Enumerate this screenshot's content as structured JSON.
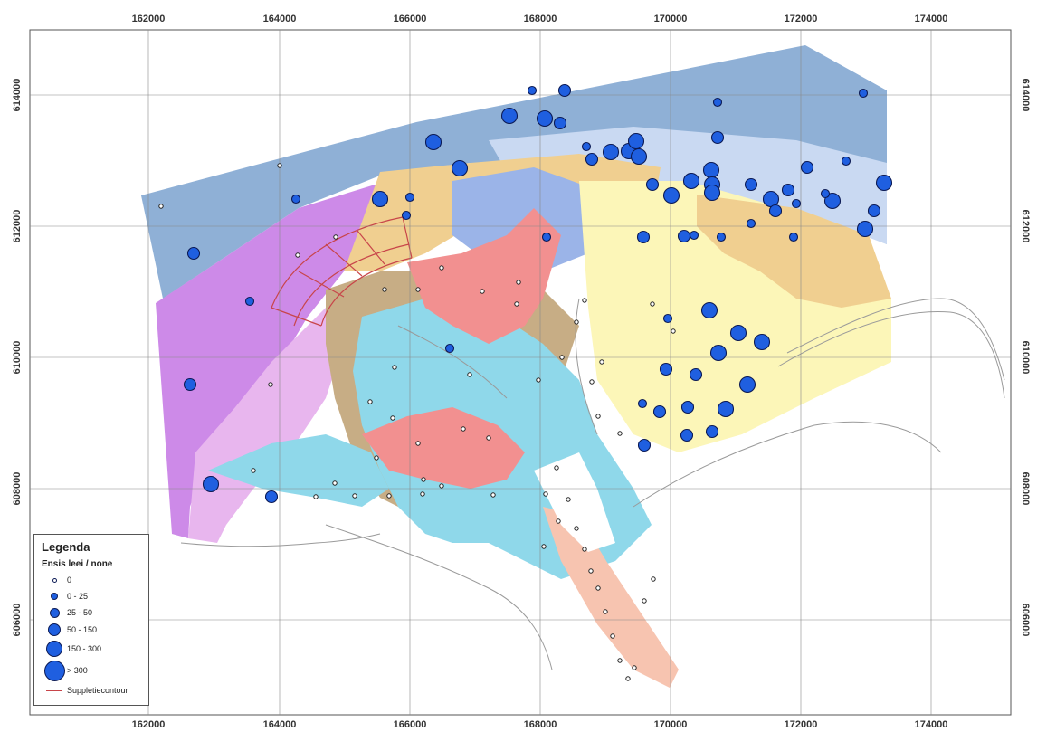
{
  "axes": {
    "x_ticks": [
      "162000",
      "164000",
      "166000",
      "168000",
      "170000",
      "172000",
      "174000"
    ],
    "y_ticks": [
      "614000",
      "612000",
      "610000",
      "608000",
      "606000"
    ]
  },
  "legend": {
    "title": "Legenda",
    "subtitle": "Ensis leei / none",
    "classes": [
      {
        "label": "0"
      },
      {
        "label": "0 - 25"
      },
      {
        "label": "25 - 50"
      },
      {
        "label": "50 - 150"
      },
      {
        "label": "150 - 300"
      },
      {
        "label": "> 300"
      }
    ],
    "line_label": "Suppletiecontour"
  },
  "colors": {
    "deep_water": "#8fb0d6",
    "shallow_water": "#c9d9f2",
    "purple": "#cd8ae8",
    "pink": "#e8b6ee",
    "sand": "#f0cf90",
    "tan": "#c7ad85",
    "cyan": "#8fd8ea",
    "salmon": "#f29090",
    "light_yellow": "#fcf6b8",
    "light_salmon": "#f7c4b0",
    "mid_blue": "#9bb4e8",
    "dusty_rose": "#d99898",
    "marker_fill": "#1f5fe0",
    "marker_stroke": "#0b1a55",
    "contour": "#c8454a"
  }
}
